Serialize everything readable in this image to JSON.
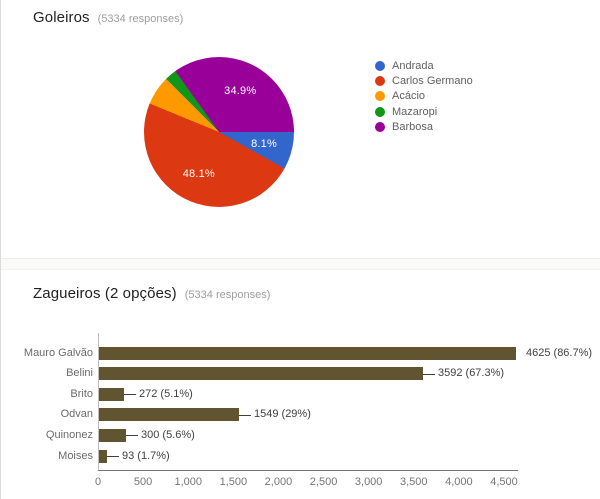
{
  "goleiros": {
    "title": "Goleiros",
    "responses": "(5334 responses)"
  },
  "zagueiros": {
    "title": "Zagueiros (2 opções)",
    "responses": "(5334 responses)"
  },
  "chart_data": [
    {
      "type": "pie",
      "title": "Goleiros",
      "total_responses": 5334,
      "legend_position": "right",
      "labels": [
        "Andrada",
        "Carlos Germano",
        "Acácio",
        "Mazaropi",
        "Barbosa"
      ],
      "values_pct": [
        8.1,
        48.1,
        6.3,
        2.6,
        34.9
      ],
      "slice_labels": [
        "8.1%",
        "48.1%",
        null,
        null,
        "34.9%"
      ],
      "colors": [
        "#3366cc",
        "#dc3912",
        "#ff9900",
        "#109618",
        "#990099"
      ],
      "start_angle": "3-oclock-clockwise"
    },
    {
      "type": "bar",
      "orientation": "horizontal",
      "title": "Zagueiros (2 opções)",
      "total_responses": 5334,
      "categories": [
        "Mauro Galvão",
        "Belini",
        "Brito",
        "Odvan",
        "Quinonez",
        "Moises"
      ],
      "values": [
        4625,
        3592,
        272,
        1549,
        300,
        93
      ],
      "value_labels": [
        "4625 (86.7%)",
        "3592 (67.3%)",
        "272 (5.1%)",
        "1549 (29%)",
        "300 (5.6%)",
        "93 (1.7%)"
      ],
      "label_connector": [
        false,
        true,
        true,
        true,
        true,
        true
      ],
      "bar_color": "#615430",
      "xlim": [
        0,
        4655
      ],
      "xticks": [
        0,
        500,
        1000,
        1500,
        2000,
        2500,
        3000,
        3500,
        4000,
        4500
      ],
      "xtick_labels": [
        "0",
        "500",
        "1,000",
        "1,500",
        "2,000",
        "2,500",
        "3,000",
        "3,500",
        "4,000",
        "4,500"
      ],
      "grid": false
    }
  ]
}
